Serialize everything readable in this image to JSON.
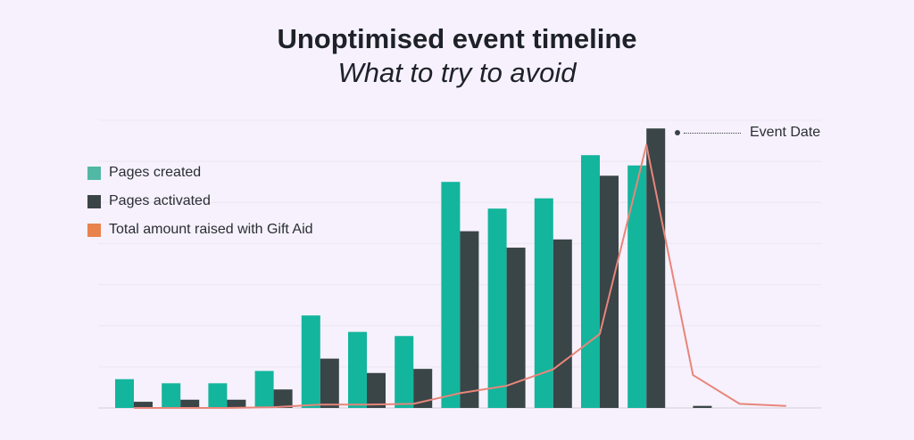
{
  "header": {
    "title": "Unoptimised event timeline",
    "subtitle": "What to try to avoid"
  },
  "legend": [
    {
      "label": "Pages created",
      "color": "#52b8a6"
    },
    {
      "label": "Pages activated",
      "color": "#3a4447"
    },
    {
      "label": "Total amount raised with Gift Aid",
      "color": "#e8834e"
    }
  ],
  "annotation": {
    "label": "Event Date"
  },
  "chart_data": {
    "type": "bar",
    "title": "Unoptimised event timeline",
    "subtitle": "What to try to avoid",
    "categories": [
      "",
      "",
      "",
      "",
      "",
      "",
      "",
      "",
      "",
      "",
      "",
      "",
      "",
      "",
      ""
    ],
    "series": [
      {
        "name": "Pages created",
        "type": "bar",
        "color": "#13b59d",
        "values": [
          7,
          6,
          6,
          9,
          22.5,
          18.5,
          17.5,
          55,
          48.5,
          51,
          61.5,
          59,
          0,
          null,
          null
        ]
      },
      {
        "name": "Pages activated",
        "type": "bar",
        "color": "#394547",
        "values": [
          1.5,
          2,
          2,
          4.5,
          12,
          8.5,
          9.5,
          43,
          39,
          41,
          56.5,
          68,
          0.5,
          null,
          null
        ]
      },
      {
        "name": "Total amount raised with Gift Aid",
        "type": "line",
        "color": "#e8857b",
        "values": [
          0,
          0,
          0,
          0.2,
          0.8,
          0.8,
          1,
          3.6,
          5.4,
          9.4,
          18,
          64,
          8,
          1,
          0.5
        ]
      }
    ],
    "ylim": [
      0,
      70
    ],
    "grid": true,
    "legend_position": "left",
    "annotation": "Event Date",
    "xlabel": "",
    "ylabel": ""
  }
}
